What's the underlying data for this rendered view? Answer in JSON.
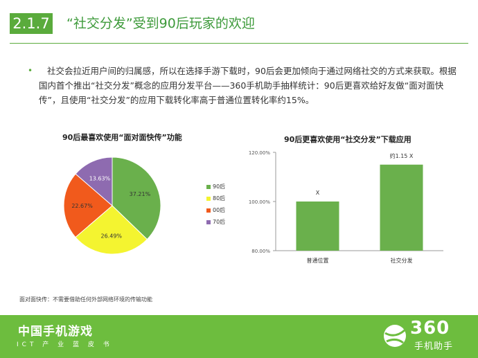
{
  "header": {
    "section_number": "2.1.7",
    "title": "“社交分发”受到90后玩家的欢迎"
  },
  "body": {
    "bullet": "•",
    "text": "社交会拉近用户间的归属感，所以在选择手游下载时，90后会更加倾向于通过网络社交的方式来获取。根据国内首个推出“社交分发”概念的应用分发平台——360手机助手抽样统计：90后更喜欢给好友做“面对面快传”，且使用“社交分发”的应用下载转化率高于普通位置转化率约15%。"
  },
  "chart_data": [
    {
      "type": "pie",
      "title": "90后最喜欢使用“面对面快传”功能",
      "labels": [
        "90后",
        "80后",
        "00后",
        "70后"
      ],
      "values": [
        37.21,
        26.49,
        22.67,
        13.63
      ],
      "value_labels": [
        "37.21%",
        "26.49%",
        "22.67%",
        "13.63%"
      ],
      "colors": [
        "#6ab04c",
        "#f4f430",
        "#f15a1c",
        "#8e6bb0"
      ],
      "legend_position": "right"
    },
    {
      "type": "bar",
      "title": "90后更喜欢使用“社交分发”下载应用",
      "categories": [
        "普通位置",
        "社交分发"
      ],
      "values": [
        100,
        115
      ],
      "data_labels": [
        "X",
        "约1.15 X"
      ],
      "ylim": [
        80,
        120
      ],
      "yticks": [
        "80.00%",
        "100.00%",
        "120.00%"
      ],
      "color": "#6ab04c",
      "grid": false
    }
  ],
  "footnote": "面对面快传：不需要借助任何外部网络环境的传输功能",
  "footer": {
    "title": "中国手机游戏",
    "subtitle": "ICT 产 业 蓝 皮 书",
    "logo_number": "360",
    "logo_text": "手机助手"
  }
}
